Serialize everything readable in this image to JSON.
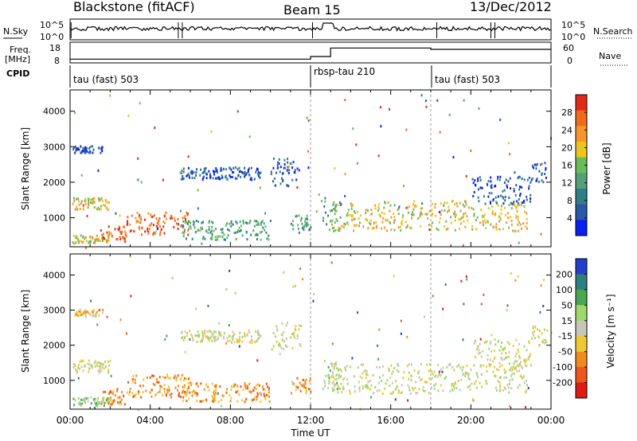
{
  "header": {
    "title": "Blackstone (fitACF)",
    "beam": "Beam 15",
    "date": "13/Dec/2012"
  },
  "status_panels": {
    "nsky_label": "N.Sky",
    "nsky_ticks": [
      "10^5",
      "10^0"
    ],
    "nsearch_label": "N.Search",
    "nsearch_ticks": [
      "10^5",
      "10^0"
    ],
    "freq_label_line1": "Freq.",
    "freq_label_line2": "[MHz]",
    "freq_ticks": [
      "18",
      "8"
    ],
    "nave_label": "Nave",
    "nave_ticks": [
      "60",
      "0"
    ],
    "cpid_label": "CPID",
    "cpid_segments": [
      {
        "label": "tau (fast) 503",
        "start_hour": 0
      },
      {
        "label": "rbsp-tau 210",
        "start_hour": 12
      },
      {
        "label": "tau (fast) 503",
        "start_hour": 18
      }
    ],
    "nave_steps": [
      {
        "start_hour": 0,
        "value": 8
      },
      {
        "start_hour": 12,
        "value": 18
      },
      {
        "start_hour": 13,
        "value": 50
      },
      {
        "start_hour": 18,
        "value": 45
      }
    ]
  },
  "chart_data": [
    {
      "type": "heatmap",
      "name": "power",
      "ylabel": "Slant Range [km]",
      "ylim": [
        180,
        4600
      ],
      "yticks": [
        "1000",
        "2000",
        "3000",
        "4000"
      ],
      "xlim_hours": [
        0,
        24
      ],
      "colorbar_label": "Power [dB]",
      "colorbar_ticks": [
        "4",
        "8",
        "12",
        "16",
        "20",
        "24",
        "28"
      ],
      "colorbar_range": [
        0,
        32
      ],
      "colors": [
        "#0a1ff0",
        "#2a57a8",
        "#2d7e86",
        "#53a07a",
        "#6cbb5a",
        "#e9c51e",
        "#f5962a",
        "#f06a1c",
        "#e02a18"
      ]
    },
    {
      "type": "heatmap",
      "name": "velocity",
      "ylabel": "Slant Range [km]",
      "ylim": [
        180,
        4600
      ],
      "yticks": [
        "1000",
        "2000",
        "3000",
        "4000"
      ],
      "xlim_hours": [
        0,
        24
      ],
      "xlabel": "Time UT",
      "colorbar_label": "Velocity [m s⁻¹]",
      "colorbar_ticks": [
        "200",
        "100",
        "50",
        "15",
        "-15",
        "-50",
        "-100",
        "-200"
      ],
      "colors": [
        "#2540c8",
        "#2f7f80",
        "#4aa650",
        "#9ed86a",
        "#c6c6bd",
        "#f0c830",
        "#f08a20",
        "#f0561c",
        "#e01a14"
      ]
    }
  ],
  "time_axis": {
    "xlabel": "Time UT",
    "ticks": [
      "00:00",
      "04:00",
      "08:00",
      "12:00",
      "16:00",
      "20:00",
      "00:00"
    ]
  },
  "scatter_features": [
    {
      "t0": 0.1,
      "t1": 2.0,
      "r0": 300,
      "r1": 550,
      "kind": 2,
      "vel": 3
    },
    {
      "t0": 0.1,
      "t1": 2.0,
      "r0": 1250,
      "r1": 1600,
      "kind": 2,
      "vel": 4
    },
    {
      "t0": 0.1,
      "t1": 1.6,
      "r0": 2850,
      "r1": 3050,
      "kind": 0,
      "vel": 5
    },
    {
      "t0": 1.5,
      "t1": 2.8,
      "r0": 350,
      "r1": 800,
      "kind": 3,
      "vel": 6
    },
    {
      "t0": 2.8,
      "t1": 6.0,
      "r0": 550,
      "r1": 1200,
      "kind": 3,
      "vel": 6
    },
    {
      "t0": 5.5,
      "t1": 10.0,
      "r0": 400,
      "r1": 950,
      "kind": 1,
      "vel": 6
    },
    {
      "t0": 5.5,
      "t1": 9.5,
      "r0": 2100,
      "r1": 2450,
      "kind": 0,
      "vel": 4
    },
    {
      "t0": 10.0,
      "t1": 11.5,
      "r0": 1900,
      "r1": 2700,
      "kind": 0,
      "vel": 4
    },
    {
      "t0": 11.0,
      "t1": 12.0,
      "r0": 600,
      "r1": 1100,
      "kind": 1,
      "vel": 6
    },
    {
      "t0": 13.0,
      "t1": 22.8,
      "r0": 650,
      "r1": 1500,
      "kind": 2,
      "vel": 4
    },
    {
      "t0": 12.5,
      "t1": 13.5,
      "r0": 600,
      "r1": 1600,
      "kind": 1,
      "vel": 3
    },
    {
      "t0": 20.0,
      "t1": 23.0,
      "r0": 1400,
      "r1": 2200,
      "kind": 0,
      "vel": 4
    },
    {
      "t0": 23.0,
      "t1": 23.8,
      "r0": 2000,
      "r1": 2600,
      "kind": 0,
      "vel": 4
    }
  ]
}
